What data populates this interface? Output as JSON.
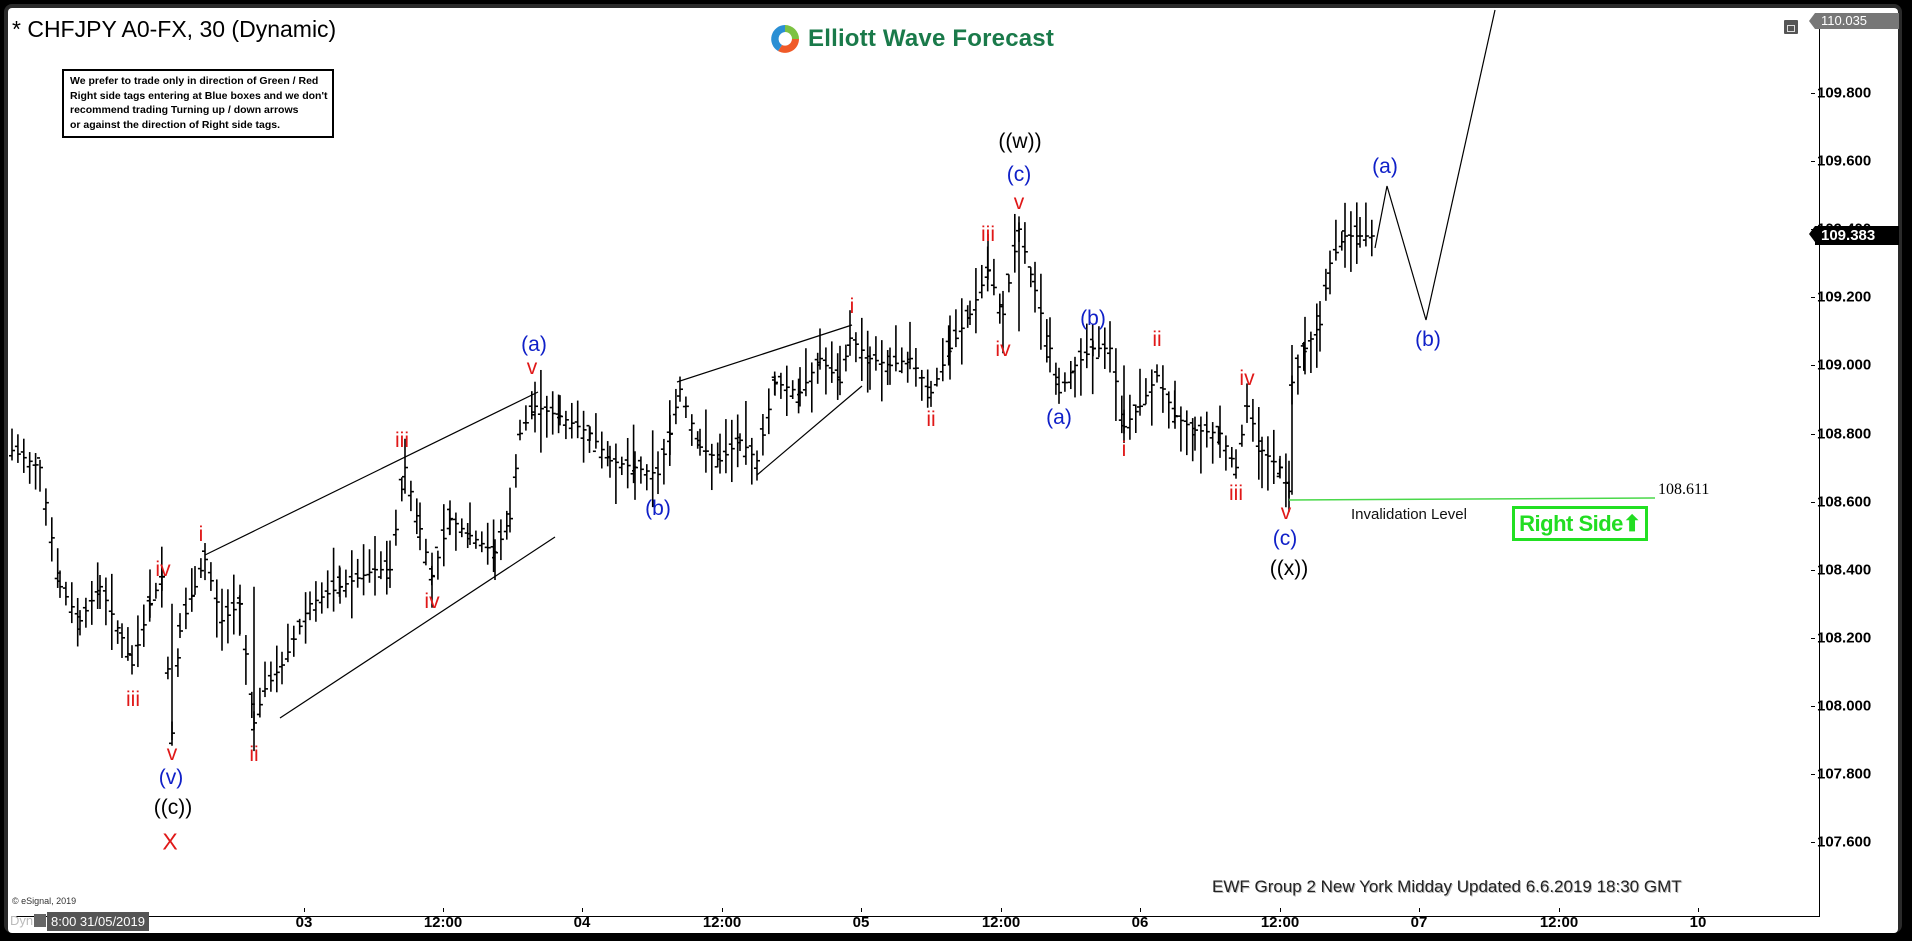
{
  "window": {
    "title": "* CHFJPY A0-FX, 30 (Dynamic)",
    "restore_icon": "window-restore-icon"
  },
  "notice": {
    "text": "We prefer to trade only in direction of Green / Red\nRight side tags entering at Blue boxes and we don't\nrecommend trading Turning up / down arrows\nor against the direction of Right side tags."
  },
  "brand": {
    "name": "Elliott Wave Forecast",
    "color": "#1a7a4a"
  },
  "price_axis": {
    "top_tag": "110.035",
    "last_price": "109.383",
    "labels": [
      "109.800",
      "109.600",
      "109.400",
      "109.200",
      "109.000",
      "108.800",
      "108.600",
      "108.400",
      "108.200",
      "108.000",
      "107.800",
      "107.600"
    ]
  },
  "time_axis": {
    "start": "8:00 31/05/2019",
    "mode": "Dyn",
    "labels": [
      "03",
      "12:00",
      "04",
      "12:00",
      "05",
      "12:00",
      "06",
      "12:00",
      "07",
      "12:00",
      "10"
    ]
  },
  "footer": {
    "copyright": "© eSignal, 2019",
    "update_note": "EWF Group 2 New York Midday Updated 6.6.2019 18:30 GMT"
  },
  "invalidation": {
    "label": "Invalidation Level",
    "value": "108.611",
    "color": "#22dd22"
  },
  "right_side": {
    "label": "Right Side",
    "arrow": "⬆",
    "color": "#22dd22"
  },
  "waves": {
    "l_iii_0": "iii",
    "l_iv_0": "iv",
    "l_v_0": "v",
    "l_v_paren": "(v)",
    "l_c_dbl": "((c))",
    "l_X": "X",
    "l_i_1": "i",
    "l_ii_1": "ii",
    "l_iii_1": "iii",
    "l_iv_1": "iv",
    "l_v_1": "v",
    "l_a_1": "(a)",
    "l_b_1": "(b)",
    "l_i_2": "i",
    "l_ii_2": "ii",
    "l_iii_2": "iii",
    "l_iv_2": "iv",
    "l_v_2": "v",
    "l_c_2": "(c)",
    "l_w_dbl": "((w))",
    "l_a_3": "(a)",
    "l_b_3": "(b)",
    "l_i_4": "i",
    "l_ii_4": "ii",
    "l_iii_4": "iii",
    "l_iv_4": "iv",
    "l_v_4": "v",
    "l_c_4": "(c)",
    "l_x_dbl": "((x))",
    "l_a_proj": "(a)",
    "l_b_proj": "(b)"
  },
  "chart_data": {
    "type": "ohlc-bar",
    "title": "* CHFJPY A0-FX, 30 (Dynamic)",
    "instrument": "CHFJPY",
    "timeframe": "30 min",
    "xlabel": "",
    "ylabel": "",
    "ylim": [
      107.45,
      110.05
    ],
    "yticks": [
      107.6,
      107.8,
      108.0,
      108.2,
      108.4,
      108.6,
      108.8,
      109.0,
      109.2,
      109.4,
      109.6,
      109.8
    ],
    "xticks": [
      "03",
      "12:00",
      "04",
      "12:00",
      "05",
      "12:00",
      "06",
      "12:00",
      "07",
      "12:00",
      "10"
    ],
    "last_price": 109.383,
    "top_price": 110.035,
    "invalidation_level": 108.611,
    "wave_pivots": [
      {
        "label": "((c)) / (v) / X",
        "price": 107.9
      },
      {
        "label": "i",
        "price": 108.43
      },
      {
        "label": "ii",
        "price": 107.93
      },
      {
        "label": "iii",
        "price": 108.7
      },
      {
        "label": "iv",
        "price": 108.35
      },
      {
        "label": "(a) v",
        "price": 108.92
      },
      {
        "label": "(b)",
        "price": 108.65
      },
      {
        "label": "i",
        "price": 109.1
      },
      {
        "label": "ii",
        "price": 108.9
      },
      {
        "label": "iii",
        "price": 109.33
      },
      {
        "label": "iv",
        "price": 109.1
      },
      {
        "label": "((w)) (c) v",
        "price": 109.42
      },
      {
        "label": "(a)",
        "price": 108.9
      },
      {
        "label": "(b)",
        "price": 109.07
      },
      {
        "label": "i",
        "price": 108.8
      },
      {
        "label": "ii",
        "price": 109.02
      },
      {
        "label": "iii",
        "price": 108.67
      },
      {
        "label": "iv",
        "price": 108.92
      },
      {
        "label": "((x)) (c) v",
        "price": 108.611
      },
      {
        "label": "(a) projected",
        "price": 109.52
      },
      {
        "label": "(b) projected",
        "price": 109.14
      }
    ],
    "annotations": [
      "Invalidation Level 108.611",
      "Right Side ⬆",
      "EWF Group 2 New York Midday Updated 6.6.2019 18:30 GMT"
    ]
  }
}
